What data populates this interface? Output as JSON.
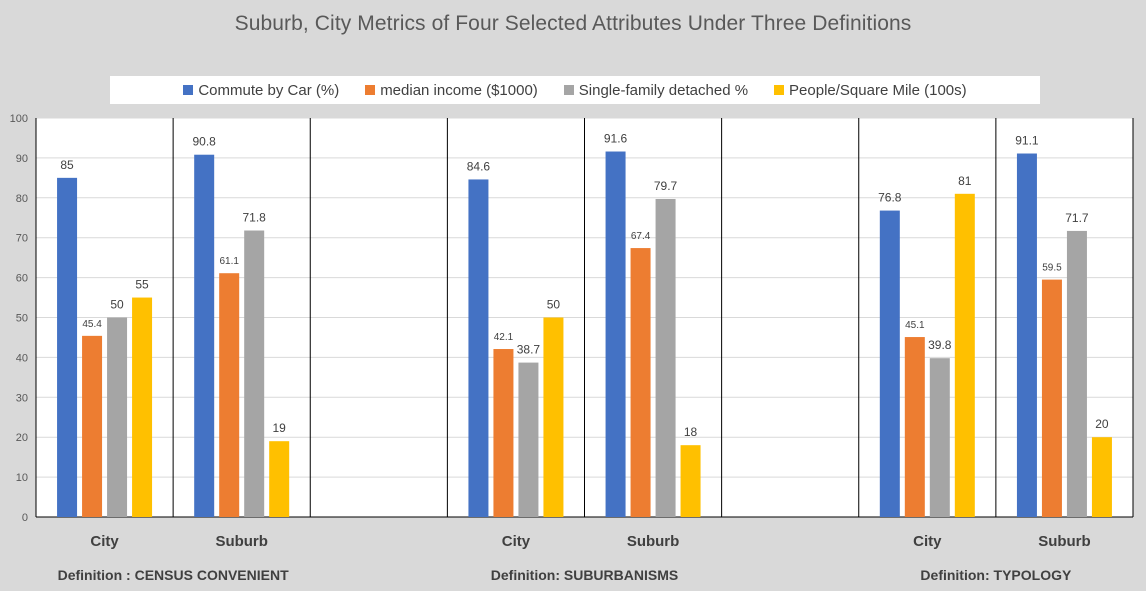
{
  "chart_data": {
    "type": "bar",
    "title": "Suburb, City Metrics of Four Selected Attributes Under Three Definitions",
    "xlabel": "",
    "ylabel": "",
    "ylim": [
      0,
      100
    ],
    "y_ticks": [
      0,
      10,
      20,
      30,
      40,
      50,
      60,
      70,
      80,
      90,
      100
    ],
    "grid": true,
    "legend_position": "top",
    "colors": {
      "background": "#d9d9d9",
      "plot_background": "#ffffff",
      "grid": "#d9d9d9",
      "divider": "#000000"
    },
    "series": [
      {
        "name": "Commute by Car (%)",
        "color": "#4472c4"
      },
      {
        "name": "median income ($1000)",
        "color": "#ed7d31"
      },
      {
        "name": "Single-family detached %",
        "color": "#a5a5a5"
      },
      {
        "name": "People/Square Mile (100s)",
        "color": "#ffc000"
      }
    ],
    "groups": [
      {
        "label": "Definition : CENSUS CONVENIENT",
        "categories": [
          {
            "label": "City",
            "values": [
              85,
              45.4,
              50,
              55
            ],
            "value_labels": [
              "85",
              "45.4",
              "50",
              "55"
            ]
          },
          {
            "label": "Suburb",
            "values": [
              90.8,
              61.1,
              71.8,
              19
            ],
            "value_labels": [
              "90.8",
              "61.1",
              "71.8",
              "19"
            ]
          }
        ]
      },
      {
        "label": "Definition: SUBURBANISMS",
        "categories": [
          {
            "label": "City",
            "values": [
              84.6,
              42.1,
              38.7,
              50
            ],
            "value_labels": [
              "84.6",
              "42.1",
              "38.7",
              "50"
            ]
          },
          {
            "label": "Suburb",
            "values": [
              91.6,
              67.4,
              79.7,
              18
            ],
            "value_labels": [
              "91.6",
              "67.4",
              "79.7",
              "18"
            ]
          }
        ]
      },
      {
        "label": "Definition: TYPOLOGY",
        "categories": [
          {
            "label": "City",
            "values": [
              76.8,
              45.1,
              39.8,
              81
            ],
            "value_labels": [
              "76.8",
              "45.1",
              "39.8",
              "81"
            ]
          },
          {
            "label": "Suburb",
            "values": [
              91.1,
              59.5,
              71.7,
              20
            ],
            "value_labels": [
              "91.1",
              "59.5",
              "71.7",
              "20"
            ]
          }
        ]
      }
    ]
  }
}
